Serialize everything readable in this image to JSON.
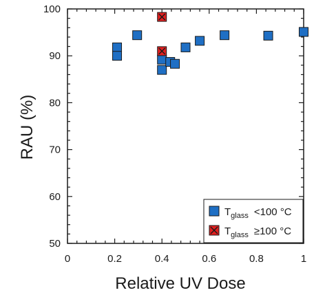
{
  "chart_data": {
    "type": "scatter",
    "xlabel": "Relative UV Dose",
    "ylabel": "RAU (%)",
    "xlim": [
      0,
      1
    ],
    "ylim": [
      50,
      100
    ],
    "x_ticks": [
      "0",
      "0.2",
      "0.4",
      "0.6",
      "0.8",
      "1"
    ],
    "y_ticks": [
      "50",
      "60",
      "70",
      "80",
      "90",
      "100"
    ],
    "grid": false,
    "legend_position": "bottom-right",
    "series": [
      {
        "legend_main": "T",
        "legend_sub": "glass",
        "legend_rest": "<100 °C",
        "color": "#1f6fc4",
        "marker": "square",
        "points": [
          {
            "x": 0.21,
            "y": 91.8
          },
          {
            "x": 0.21,
            "y": 90.0
          },
          {
            "x": 0.295,
            "y": 94.4
          },
          {
            "x": 0.4,
            "y": 89.2
          },
          {
            "x": 0.4,
            "y": 87.0
          },
          {
            "x": 0.435,
            "y": 88.7
          },
          {
            "x": 0.455,
            "y": 88.3
          },
          {
            "x": 0.5,
            "y": 91.8
          },
          {
            "x": 0.56,
            "y": 93.2
          },
          {
            "x": 0.665,
            "y": 94.4
          },
          {
            "x": 0.85,
            "y": 94.3
          },
          {
            "x": 1.0,
            "y": 95.1
          }
        ]
      },
      {
        "legend_main": "T",
        "legend_sub": "glass",
        "legend_rest": "≥100 °C",
        "color": "#e02020",
        "marker": "square-x",
        "points": [
          {
            "x": 0.4,
            "y": 98.3
          },
          {
            "x": 0.4,
            "y": 91.0
          }
        ]
      }
    ]
  }
}
